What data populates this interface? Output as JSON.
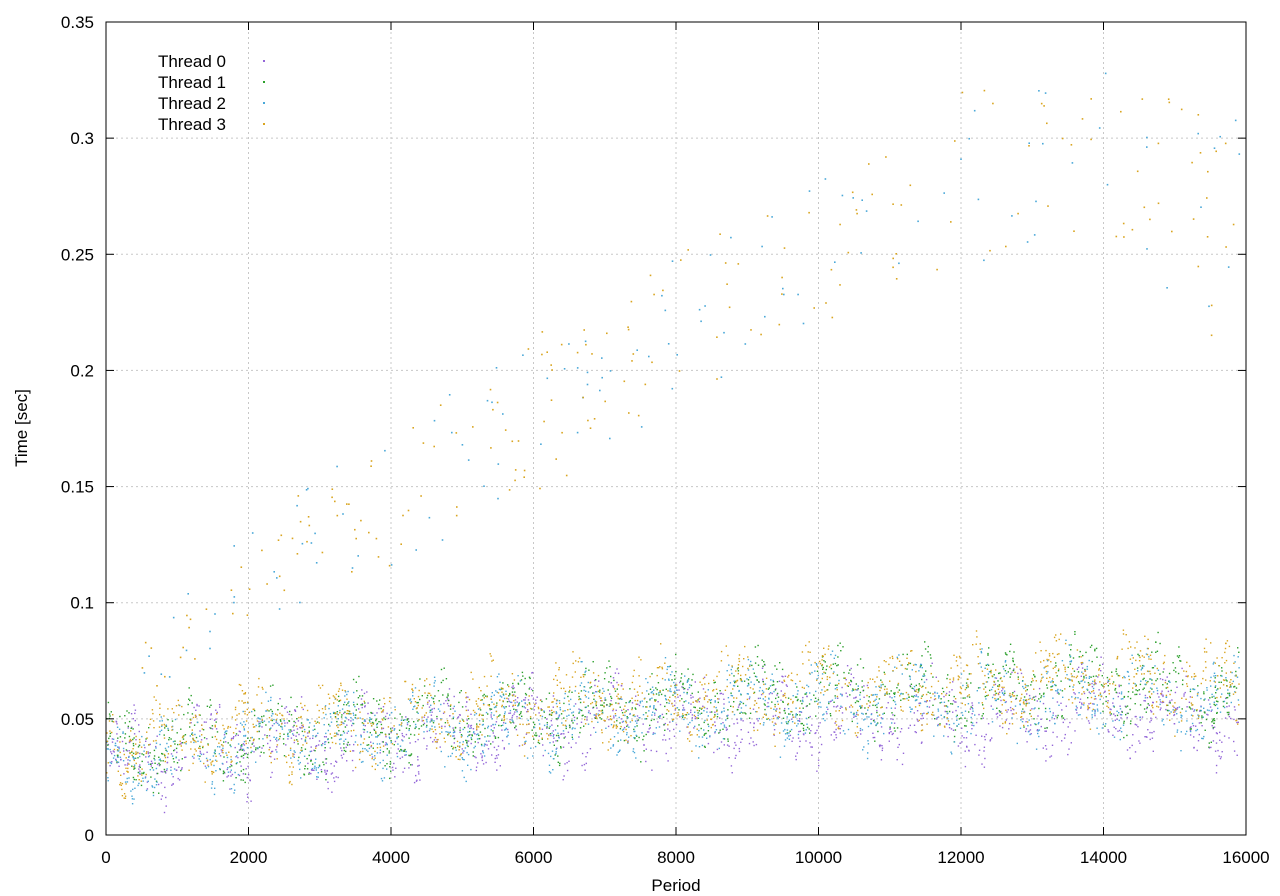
{
  "chart_data": {
    "type": "scatter",
    "title": "",
    "xlabel": "Period",
    "ylabel": "Time [sec]",
    "xlim": [
      0,
      16000
    ],
    "ylim": [
      0,
      0.35
    ],
    "x_ticks": [
      0,
      2000,
      4000,
      6000,
      8000,
      10000,
      12000,
      14000,
      16000
    ],
    "y_ticks": [
      0,
      0.05,
      0.1,
      0.15,
      0.2,
      0.25,
      0.3,
      0.35
    ],
    "x_tick_labels": [
      "0",
      "2000",
      "4000",
      "6000",
      "8000",
      "10000",
      "12000",
      "14000",
      "16000"
    ],
    "y_tick_labels": [
      "0",
      "0.05",
      "0.1",
      "0.15",
      "0.2",
      "0.25",
      "0.3",
      "0.35"
    ],
    "grid": true,
    "legend_position": "top-left",
    "series": [
      {
        "name": "Thread 0",
        "color": "#9467d8",
        "marker": "dot",
        "trend_x": [
          0,
          2000,
          4000,
          6000,
          8000,
          10000,
          12000,
          14000,
          15900
        ],
        "trend_y": [
          0.032,
          0.038,
          0.042,
          0.047,
          0.05,
          0.052,
          0.05,
          0.055,
          0.05
        ]
      },
      {
        "name": "Thread 1",
        "color": "#2ca02c",
        "marker": "dot",
        "trend_x": [
          0,
          2000,
          4000,
          6000,
          8000,
          10000,
          12000,
          14000,
          15900
        ],
        "trend_y": [
          0.036,
          0.043,
          0.048,
          0.053,
          0.057,
          0.062,
          0.06,
          0.066,
          0.06
        ]
      },
      {
        "name": "Thread 2",
        "color": "#4aa8d8",
        "marker": "dot",
        "trend_x": [
          0,
          2000,
          4000,
          6000,
          8000,
          10000,
          12000,
          14000,
          15900
        ],
        "trend_y": [
          0.033,
          0.04,
          0.045,
          0.05,
          0.054,
          0.058,
          0.057,
          0.062,
          0.057
        ]
      },
      {
        "name": "Thread 3",
        "color": "#d9a520",
        "marker": "dot",
        "trend_x": [
          0,
          2000,
          4000,
          6000,
          8000,
          10000,
          12000,
          14000,
          15900
        ],
        "trend_y": [
          0.038,
          0.045,
          0.05,
          0.056,
          0.06,
          0.064,
          0.063,
          0.069,
          0.063
        ]
      }
    ],
    "outlier_band": {
      "x": [
        500,
        2000,
        4000,
        6000,
        8000,
        10000,
        12000,
        14000,
        15900
      ],
      "lower": [
        0.06,
        0.09,
        0.115,
        0.145,
        0.185,
        0.215,
        0.24,
        0.25,
        0.205
      ],
      "upper": [
        0.085,
        0.135,
        0.175,
        0.215,
        0.25,
        0.285,
        0.32,
        0.33,
        0.315
      ]
    }
  }
}
